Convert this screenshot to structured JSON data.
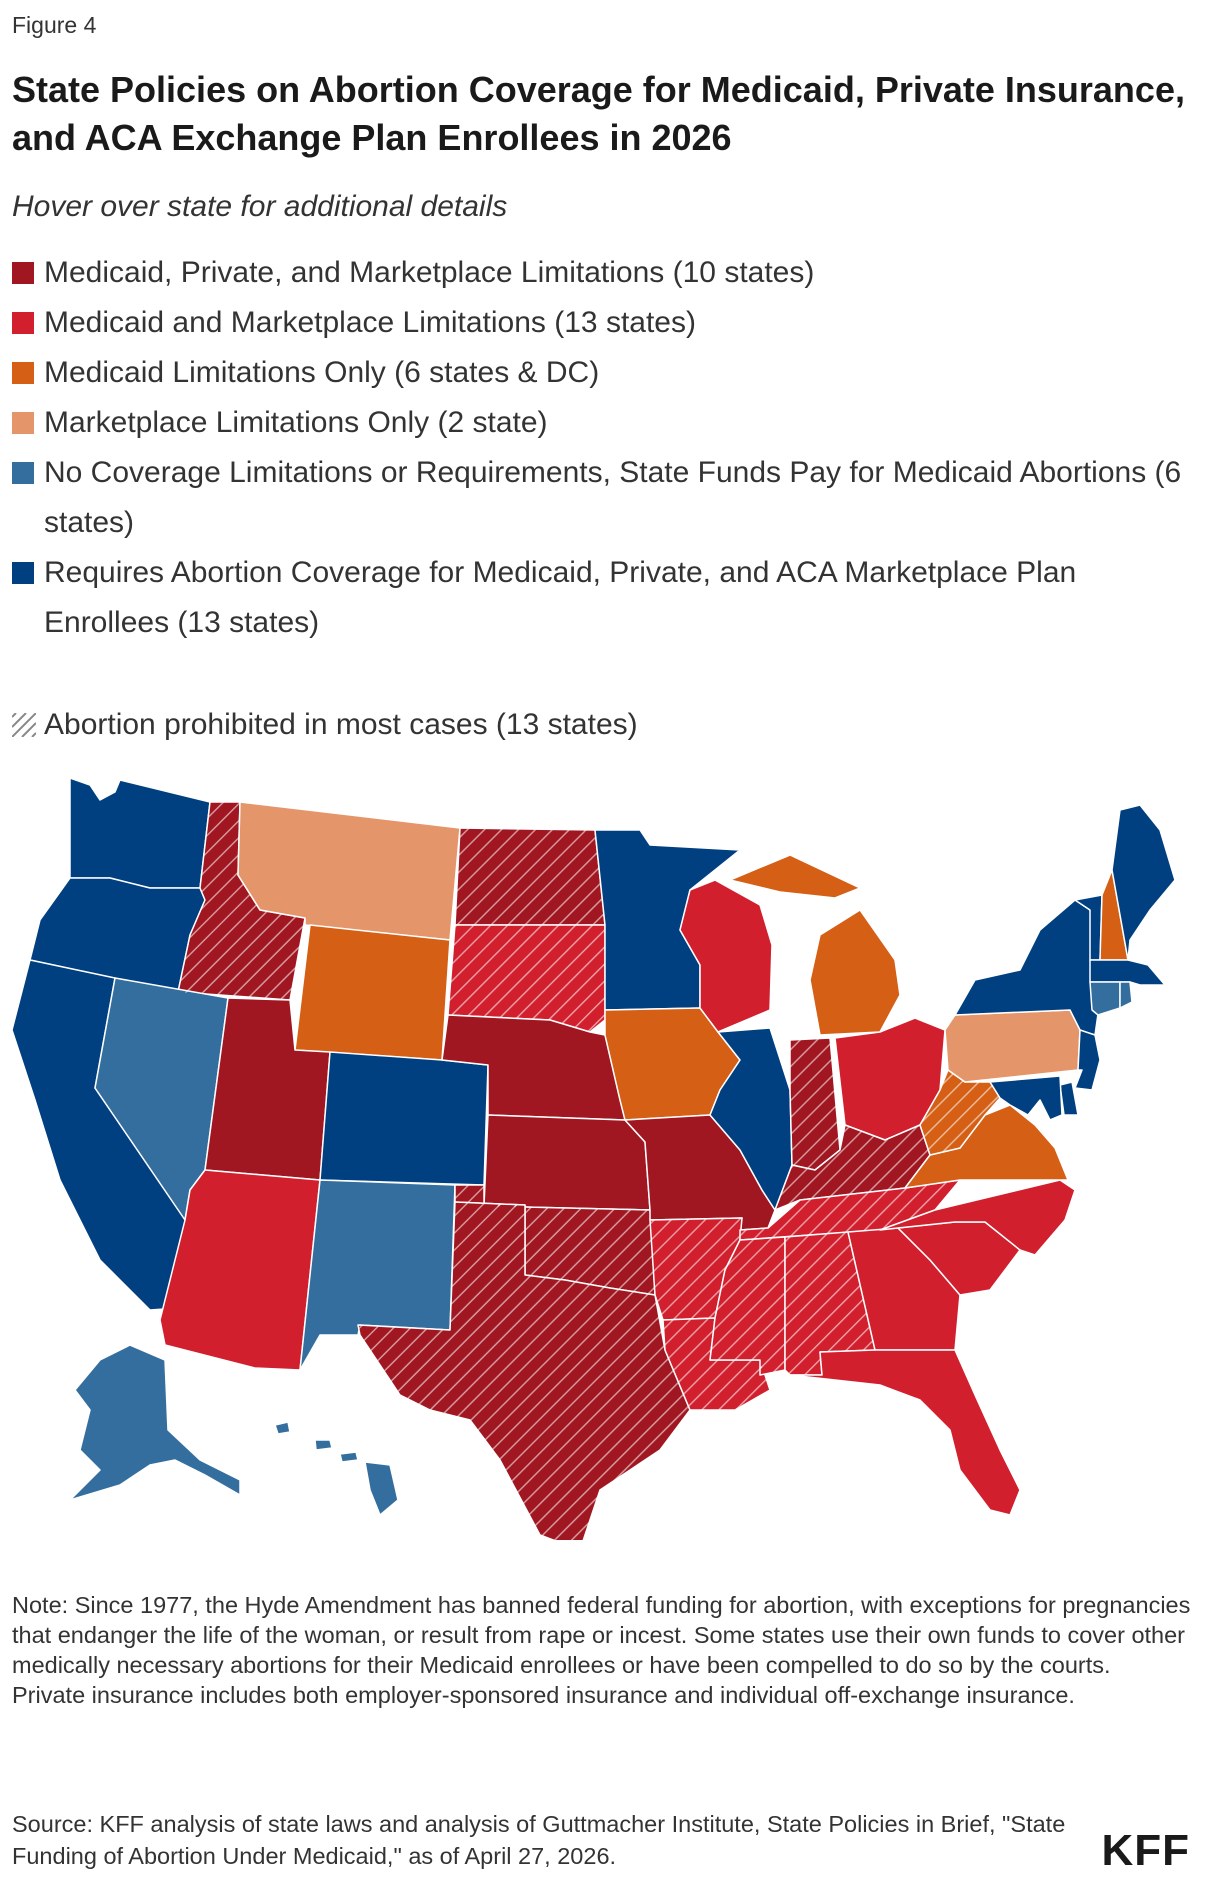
{
  "figure_label": "Figure 4",
  "title": "State Policies on Abortion Coverage for Medicaid, Private Insurance, and ACA Exchange Plan Enrollees in 2026",
  "subtitle": "Hover over state for additional details",
  "legend": [
    {
      "label": "Medicaid, Private, and Marketplace Limitations (10 states)",
      "color": "#a01722"
    },
    {
      "label": "Medicaid and Marketplace Limitations (13 states)",
      "color": "#d11f2e"
    },
    {
      "label": "Medicaid Limitations Only (6 states & DC)",
      "color": "#d45f15"
    },
    {
      "label": "Marketplace Limitations Only (2 state)",
      "color": "#e4966a"
    },
    {
      "label": "No Coverage Limitations or Requirements, State Funds Pay for Medicaid Abortions (6 states)",
      "color": "#346e9e"
    },
    {
      "label": "Requires Abortion Coverage for Medicaid, Private, and ACA Marketplace Plan Enrollees (13 states)",
      "color": "#003f80"
    }
  ],
  "hatch_legend": "Abortion prohibited in most cases (13 states)",
  "map": {
    "states": [
      {
        "id": "WA",
        "cat": 5
      },
      {
        "id": "OR",
        "cat": 5
      },
      {
        "id": "CA",
        "cat": 5
      },
      {
        "id": "ID",
        "cat": 0,
        "prohibited": true
      },
      {
        "id": "NV",
        "cat": 4
      },
      {
        "id": "MT",
        "cat": 3
      },
      {
        "id": "WY",
        "cat": 2
      },
      {
        "id": "UT",
        "cat": 0
      },
      {
        "id": "AZ",
        "cat": 1
      },
      {
        "id": "CO",
        "cat": 5
      },
      {
        "id": "NM",
        "cat": 4
      },
      {
        "id": "ND",
        "cat": 0,
        "prohibited": true
      },
      {
        "id": "SD",
        "cat": 1,
        "prohibited": true
      },
      {
        "id": "NE",
        "cat": 0
      },
      {
        "id": "KS",
        "cat": 0
      },
      {
        "id": "OK",
        "cat": 0,
        "prohibited": true
      },
      {
        "id": "TX",
        "cat": 0,
        "prohibited": true
      },
      {
        "id": "MN",
        "cat": 5
      },
      {
        "id": "IA",
        "cat": 2
      },
      {
        "id": "MO",
        "cat": 0
      },
      {
        "id": "AR",
        "cat": 1,
        "prohibited": true
      },
      {
        "id": "LA",
        "cat": 1,
        "prohibited": true
      },
      {
        "id": "WI",
        "cat": 1
      },
      {
        "id": "IL",
        "cat": 5
      },
      {
        "id": "MI",
        "cat": 2
      },
      {
        "id": "IN",
        "cat": 0,
        "prohibited": true
      },
      {
        "id": "KY",
        "cat": 0,
        "prohibited": true
      },
      {
        "id": "TN",
        "cat": 1,
        "prohibited": true
      },
      {
        "id": "MS",
        "cat": 1,
        "prohibited": true
      },
      {
        "id": "AL",
        "cat": 1,
        "prohibited": true
      },
      {
        "id": "OH",
        "cat": 1
      },
      {
        "id": "WV",
        "cat": 2,
        "prohibited": true
      },
      {
        "id": "VA",
        "cat": 2
      },
      {
        "id": "NC",
        "cat": 1
      },
      {
        "id": "SC",
        "cat": 1
      },
      {
        "id": "GA",
        "cat": 1
      },
      {
        "id": "FL",
        "cat": 1
      },
      {
        "id": "PA",
        "cat": 3
      },
      {
        "id": "NY",
        "cat": 5
      },
      {
        "id": "VT",
        "cat": 5
      },
      {
        "id": "NH",
        "cat": 2
      },
      {
        "id": "ME",
        "cat": 5
      },
      {
        "id": "MA",
        "cat": 5
      },
      {
        "id": "CT",
        "cat": 4
      },
      {
        "id": "RI",
        "cat": 4
      },
      {
        "id": "NJ",
        "cat": 5
      },
      {
        "id": "DE",
        "cat": 5
      },
      {
        "id": "MD",
        "cat": 5
      },
      {
        "id": "AK",
        "cat": 4
      },
      {
        "id": "HI",
        "cat": 4
      }
    ]
  },
  "note": [
    "Note: Since 1977, the Hyde Amendment has banned federal funding for abortion, with exceptions for pregnancies that endanger the life of the woman, or result from rape or incest. Some states use their own funds to cover other medically necessary abortions for their Medicaid enrollees or have been compelled to do so by the courts.",
    "Private insurance includes both employer-sponsored insurance and individual off-exchange insurance."
  ],
  "source": "Source: KFF analysis of state laws and analysis of Guttmacher Institute, State Policies in Brief, \"State Funding of Abortion Under Medicaid,\" as of April 27, 2026.",
  "logo": "KFF"
}
